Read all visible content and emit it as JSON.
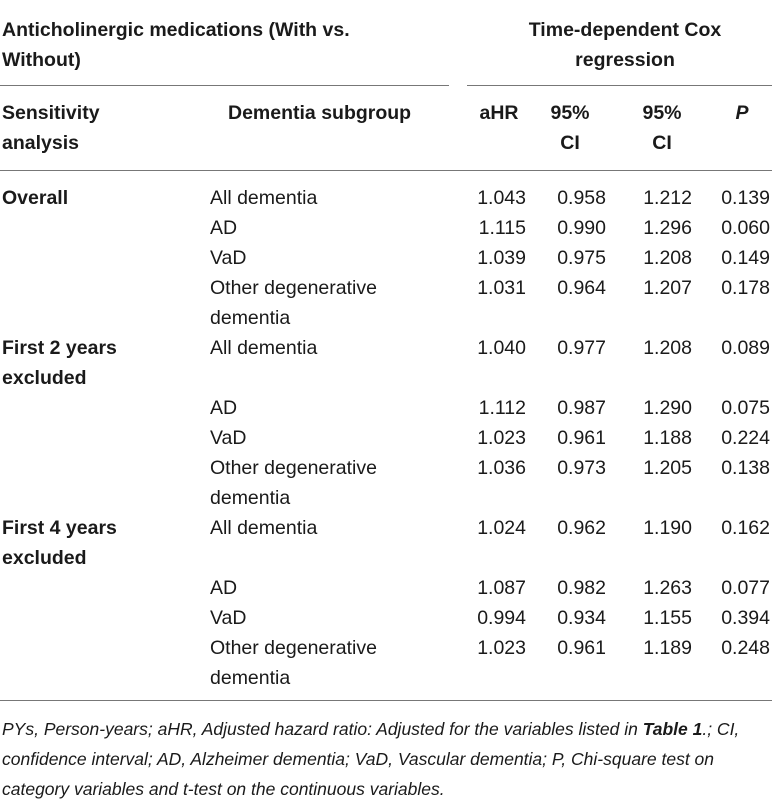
{
  "header": {
    "group_title_line1": "Anticholinergic medications (With vs.",
    "group_title_line2": "Without)",
    "model_title_line1": "Time-dependent Cox",
    "model_title_line2": "regression"
  },
  "columns": {
    "sensitivity_line1": "Sensitivity",
    "sensitivity_line2": "analysis",
    "subgroup": "Dementia subgroup",
    "ahr": "aHR",
    "ci_low_line1": "95%",
    "ci_low_line2": "CI",
    "ci_high_line1": "95%",
    "ci_high_line2": "CI",
    "p": "P"
  },
  "rows": [
    {
      "analysis": "Overall",
      "analysis2": "",
      "subgroup": "All dementia",
      "subgroup2": "",
      "ahr": "1.043",
      "ci_low": "0.958",
      "ci_high": "1.212",
      "p": "0.139"
    },
    {
      "analysis": "",
      "analysis2": "",
      "subgroup": "AD",
      "subgroup2": "",
      "ahr": "1.115",
      "ci_low": "0.990",
      "ci_high": "1.296",
      "p": "0.060"
    },
    {
      "analysis": "",
      "analysis2": "",
      "subgroup": "VaD",
      "subgroup2": "",
      "ahr": "1.039",
      "ci_low": "0.975",
      "ci_high": "1.208",
      "p": "0.149"
    },
    {
      "analysis": "",
      "analysis2": "",
      "subgroup": "Other degenerative",
      "subgroup2": "dementia",
      "ahr": "1.031",
      "ci_low": "0.964",
      "ci_high": "1.207",
      "p": "0.178"
    },
    {
      "analysis": "First 2 years",
      "analysis2": "excluded",
      "subgroup": "All dementia",
      "subgroup2": "",
      "ahr": "1.040",
      "ci_low": "0.977",
      "ci_high": "1.208",
      "p": "0.089"
    },
    {
      "analysis": "",
      "analysis2": "",
      "subgroup": "AD",
      "subgroup2": "",
      "ahr": "1.112",
      "ci_low": "0.987",
      "ci_high": "1.290",
      "p": "0.075"
    },
    {
      "analysis": "",
      "analysis2": "",
      "subgroup": "VaD",
      "subgroup2": "",
      "ahr": "1.023",
      "ci_low": "0.961",
      "ci_high": "1.188",
      "p": "0.224"
    },
    {
      "analysis": "",
      "analysis2": "",
      "subgroup": "Other degenerative",
      "subgroup2": "dementia",
      "ahr": "1.036",
      "ci_low": "0.973",
      "ci_high": "1.205",
      "p": "0.138"
    },
    {
      "analysis": "First 4 years",
      "analysis2": "excluded",
      "subgroup": "All dementia",
      "subgroup2": "",
      "ahr": "1.024",
      "ci_low": "0.962",
      "ci_high": "1.190",
      "p": "0.162"
    },
    {
      "analysis": "",
      "analysis2": "",
      "subgroup": "AD",
      "subgroup2": "",
      "ahr": "1.087",
      "ci_low": "0.982",
      "ci_high": "1.263",
      "p": "0.077"
    },
    {
      "analysis": "",
      "analysis2": "",
      "subgroup": "VaD",
      "subgroup2": "",
      "ahr": "0.994",
      "ci_low": "0.934",
      "ci_high": "1.155",
      "p": "0.394"
    },
    {
      "analysis": "",
      "analysis2": "",
      "subgroup": "Other degenerative",
      "subgroup2": "dementia",
      "ahr": "1.023",
      "ci_low": "0.961",
      "ci_high": "1.189",
      "p": "0.248"
    }
  ],
  "footnote": {
    "part1": "PYs, Person-years; aHR, Adjusted hazard ratio: Adjusted for the variables listed in ",
    "table_ref": "Table 1",
    "part2": ".; CI, confidence interval; AD, Alzheimer dementia; VaD, Vascular dementia; P, Chi-square test on category variables and t-test on the continuous variables."
  }
}
